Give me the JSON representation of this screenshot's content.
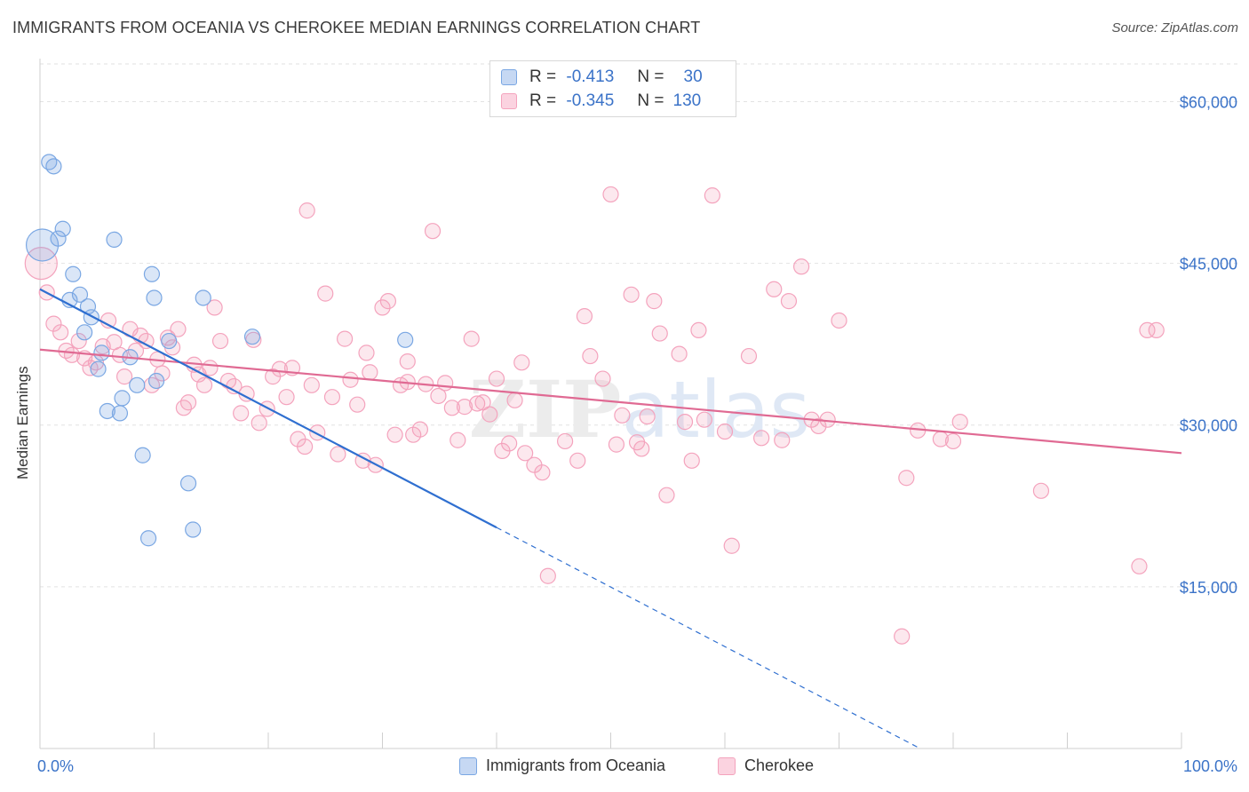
{
  "title": "IMMIGRANTS FROM OCEANIA VS CHEROKEE MEDIAN EARNINGS CORRELATION CHART",
  "source": "Source: ZipAtlas.com",
  "watermark": "ZIPatlas",
  "stats_legend": {
    "rows": [
      {
        "r_label": "R =",
        "r_value": "-0.413",
        "n_label": "N =",
        "n_value": "30",
        "color": "#7aa7e3"
      },
      {
        "r_label": "R =",
        "r_value": "-0.345",
        "n_label": "N =",
        "n_value": "130",
        "color": "#f4a3bd"
      }
    ]
  },
  "bottom_legend": [
    {
      "label": "Immigrants from Oceania",
      "color": "#7aa7e3"
    },
    {
      "label": "Cherokee",
      "color": "#f4a3bd"
    }
  ],
  "chart_data": {
    "type": "scatter",
    "title": "IMMIGRANTS FROM OCEANIA VS CHEROKEE MEDIAN EARNINGS CORRELATION CHART",
    "xlabel": "",
    "ylabel": "Median Earnings",
    "xlim": [
      0,
      100
    ],
    "ylim": [
      0,
      63500
    ],
    "x_tick_labels": [
      "0.0%",
      "100.0%"
    ],
    "y_ticks": [
      15000,
      30000,
      45000,
      60000
    ],
    "y_tick_labels": [
      "$15,000",
      "$30,000",
      "$45,000",
      "$60,000"
    ],
    "grid": true,
    "legend": "top-center",
    "series": [
      {
        "name": "Immigrants from Oceania",
        "color": "#7aa7e3",
        "line_color": "#2f6fd0",
        "trend": {
          "x0": 0,
          "y0": 42600,
          "x1": 40,
          "y1": 20500,
          "dashed_to_x": 77
        },
        "points": [
          [
            0.2,
            46700
          ],
          [
            0.8,
            54400
          ],
          [
            1.2,
            54000
          ],
          [
            1.6,
            47300
          ],
          [
            2.0,
            48200
          ],
          [
            2.9,
            44000
          ],
          [
            3.5,
            42100
          ],
          [
            2.6,
            41600
          ],
          [
            4.2,
            41000
          ],
          [
            4.5,
            40000
          ],
          [
            3.9,
            38600
          ],
          [
            5.4,
            36700
          ],
          [
            5.1,
            35200
          ],
          [
            7.9,
            36300
          ],
          [
            9.8,
            44000
          ],
          [
            10.0,
            41800
          ],
          [
            6.5,
            47200
          ],
          [
            14.3,
            41800
          ],
          [
            18.6,
            38200
          ],
          [
            11.3,
            37800
          ],
          [
            8.5,
            33700
          ],
          [
            10.2,
            34100
          ],
          [
            7.2,
            32500
          ],
          [
            5.9,
            31300
          ],
          [
            7.0,
            31100
          ],
          [
            9.0,
            27200
          ],
          [
            13.0,
            24600
          ],
          [
            9.5,
            19500
          ],
          [
            13.4,
            20300
          ],
          [
            32.0,
            37900
          ]
        ]
      },
      {
        "name": "Cherokee",
        "color": "#f4a3bd",
        "line_color": "#e06a93",
        "trend": {
          "x0": 0,
          "y0": 37000,
          "x1": 100,
          "y1": 27400
        },
        "points": [
          [
            0.1,
            45000
          ],
          [
            0.6,
            42300
          ],
          [
            1.2,
            39400
          ],
          [
            1.8,
            38600
          ],
          [
            2.3,
            36900
          ],
          [
            2.8,
            36500
          ],
          [
            3.4,
            37800
          ],
          [
            3.9,
            36200
          ],
          [
            4.4,
            35300
          ],
          [
            4.9,
            35800
          ],
          [
            5.5,
            37300
          ],
          [
            6.0,
            39700
          ],
          [
            6.5,
            37700
          ],
          [
            7.0,
            36500
          ],
          [
            7.4,
            34500
          ],
          [
            7.9,
            38900
          ],
          [
            8.4,
            36900
          ],
          [
            8.8,
            38300
          ],
          [
            9.3,
            37800
          ],
          [
            9.8,
            33700
          ],
          [
            10.3,
            36100
          ],
          [
            10.7,
            34800
          ],
          [
            11.2,
            38100
          ],
          [
            11.6,
            37200
          ],
          [
            12.1,
            38900
          ],
          [
            12.6,
            31600
          ],
          [
            13.0,
            32100
          ],
          [
            13.5,
            35600
          ],
          [
            13.9,
            34700
          ],
          [
            14.4,
            33700
          ],
          [
            14.9,
            35300
          ],
          [
            15.3,
            40900
          ],
          [
            15.8,
            37800
          ],
          [
            16.5,
            34100
          ],
          [
            17.0,
            33600
          ],
          [
            17.6,
            31100
          ],
          [
            18.1,
            32900
          ],
          [
            18.7,
            37900
          ],
          [
            19.2,
            30200
          ],
          [
            19.9,
            31500
          ],
          [
            20.4,
            34500
          ],
          [
            21.0,
            35200
          ],
          [
            21.6,
            32600
          ],
          [
            22.1,
            35300
          ],
          [
            22.6,
            28700
          ],
          [
            23.2,
            28000
          ],
          [
            23.8,
            33700
          ],
          [
            24.3,
            29300
          ],
          [
            23.4,
            49900
          ],
          [
            25.0,
            42200
          ],
          [
            25.6,
            32600
          ],
          [
            26.1,
            27300
          ],
          [
            26.7,
            38000
          ],
          [
            27.2,
            34200
          ],
          [
            27.8,
            31900
          ],
          [
            28.3,
            26700
          ],
          [
            28.9,
            34900
          ],
          [
            29.4,
            26300
          ],
          [
            28.6,
            36700
          ],
          [
            30.0,
            40900
          ],
          [
            30.5,
            41500
          ],
          [
            31.1,
            29100
          ],
          [
            31.6,
            33700
          ],
          [
            32.2,
            34000
          ],
          [
            32.2,
            35900
          ],
          [
            32.7,
            29100
          ],
          [
            33.3,
            29600
          ],
          [
            33.8,
            33800
          ],
          [
            34.4,
            48000
          ],
          [
            34.9,
            32700
          ],
          [
            35.5,
            33900
          ],
          [
            36.1,
            31600
          ],
          [
            36.6,
            28600
          ],
          [
            37.2,
            31700
          ],
          [
            37.8,
            38000
          ],
          [
            38.3,
            32000
          ],
          [
            38.8,
            32100
          ],
          [
            39.4,
            31000
          ],
          [
            40.0,
            34300
          ],
          [
            40.5,
            27600
          ],
          [
            41.1,
            28300
          ],
          [
            41.6,
            32300
          ],
          [
            42.2,
            35800
          ],
          [
            42.5,
            27400
          ],
          [
            43.3,
            26300
          ],
          [
            44.0,
            25600
          ],
          [
            44.5,
            16000
          ],
          [
            46.0,
            28500
          ],
          [
            47.1,
            26700
          ],
          [
            47.7,
            40100
          ],
          [
            48.2,
            36400
          ],
          [
            49.3,
            34300
          ],
          [
            50.0,
            51400
          ],
          [
            50.5,
            28200
          ],
          [
            51.0,
            30900
          ],
          [
            51.8,
            42100
          ],
          [
            52.3,
            28400
          ],
          [
            52.7,
            27800
          ],
          [
            53.2,
            30800
          ],
          [
            53.8,
            41500
          ],
          [
            54.3,
            38500
          ],
          [
            54.9,
            23500
          ],
          [
            56.0,
            36600
          ],
          [
            56.5,
            30300
          ],
          [
            57.1,
            26700
          ],
          [
            57.7,
            38800
          ],
          [
            58.2,
            30500
          ],
          [
            58.9,
            51300
          ],
          [
            60.0,
            29400
          ],
          [
            60.6,
            18800
          ],
          [
            62.1,
            36400
          ],
          [
            63.2,
            28800
          ],
          [
            64.3,
            42600
          ],
          [
            65.0,
            28600
          ],
          [
            65.6,
            41500
          ],
          [
            66.7,
            44700
          ],
          [
            67.6,
            30500
          ],
          [
            68.2,
            29900
          ],
          [
            69.0,
            30500
          ],
          [
            70.0,
            39700
          ],
          [
            75.5,
            10400
          ],
          [
            75.9,
            25100
          ],
          [
            76.9,
            29500
          ],
          [
            78.9,
            28700
          ],
          [
            80.0,
            28500
          ],
          [
            80.6,
            30300
          ],
          [
            87.7,
            23900
          ],
          [
            96.3,
            16900
          ],
          [
            97.8,
            38800
          ],
          [
            97.0,
            38800
          ]
        ]
      }
    ]
  }
}
